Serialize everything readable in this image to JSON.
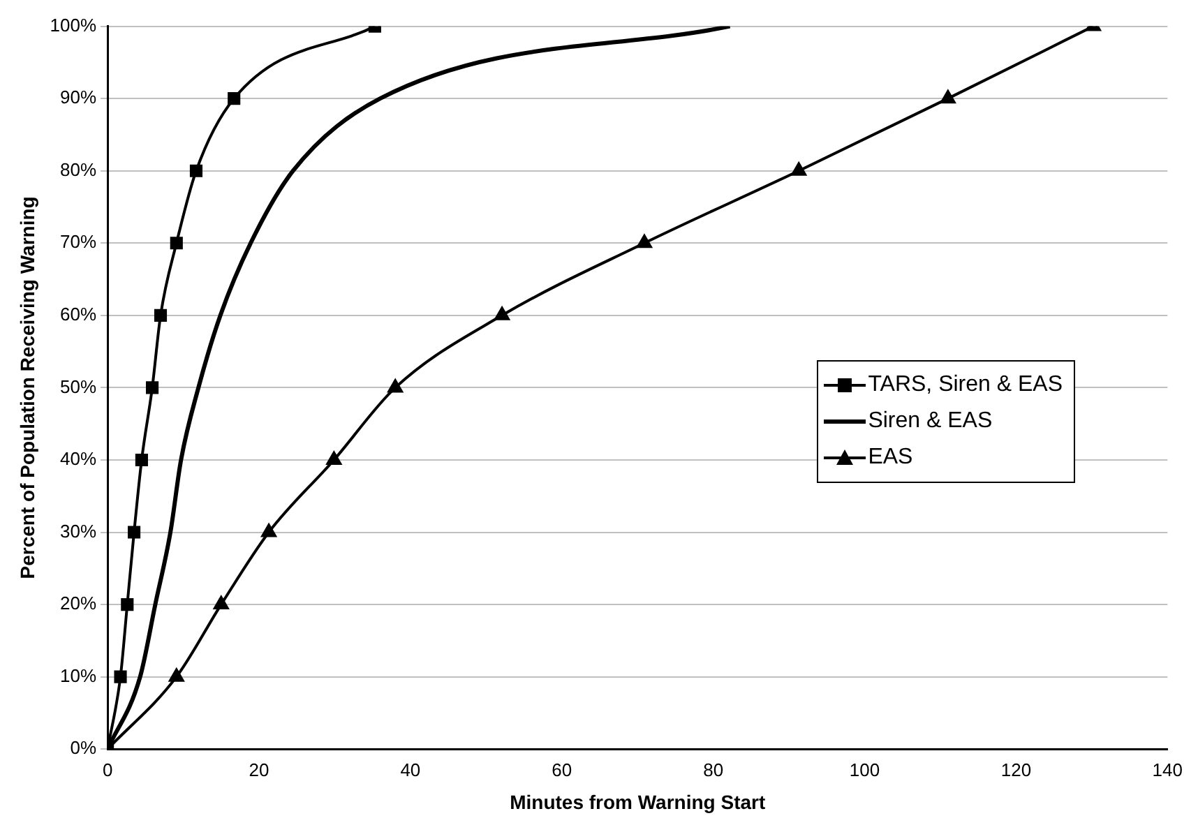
{
  "chart_data": {
    "type": "line",
    "xlabel": "Minutes from Warning Start",
    "ylabel": "Percent of Population Receiving Warning",
    "xlim": [
      0,
      140
    ],
    "xticks": [
      0,
      20,
      40,
      60,
      80,
      100,
      120,
      140
    ],
    "ylim": [
      0,
      100
    ],
    "yticks": [
      {
        "value": 0,
        "label": "0%"
      },
      {
        "value": 10,
        "label": "10%"
      },
      {
        "value": 20,
        "label": "20%"
      },
      {
        "value": 30,
        "label": "30%"
      },
      {
        "value": 40,
        "label": "40%"
      },
      {
        "value": 50,
        "label": "50%"
      },
      {
        "value": 60,
        "label": "60%"
      },
      {
        "value": 70,
        "label": "70%"
      },
      {
        "value": 80,
        "label": "80%"
      },
      {
        "value": 90,
        "label": "90%"
      },
      {
        "value": 100,
        "label": "100%"
      }
    ],
    "grid": "y",
    "legend": "right",
    "line_style": "solid",
    "series": [
      {
        "name": "TARS, Siren & EAS",
        "color": "#000000",
        "marker": "square",
        "x": [
          0,
          1.7,
          2.6,
          3.5,
          4.5,
          5.9,
          7.0,
          9.1,
          11.7,
          16.7,
          35.3
        ],
        "values": [
          0,
          10,
          20,
          30,
          40,
          50,
          60,
          70,
          80,
          90,
          100
        ]
      },
      {
        "name": "Siren & EAS",
        "color": "#000000",
        "marker": "none",
        "x": [
          0,
          4.3,
          6.3,
          8.3,
          9.7,
          12,
          14.9,
          18.9,
          24.5,
          36,
          82.2
        ],
        "values": [
          0,
          10,
          20,
          30,
          40,
          50,
          60,
          70,
          80,
          90,
          100
        ]
      },
      {
        "name": "EAS",
        "color": "#000000",
        "marker": "triangle",
        "x": [
          0,
          9.1,
          15,
          21.3,
          29.9,
          38,
          52.1,
          70.9,
          91.3,
          111,
          130.2
        ],
        "values": [
          0,
          10,
          20,
          30,
          40,
          50,
          60,
          70,
          80,
          90,
          100
        ]
      }
    ]
  }
}
